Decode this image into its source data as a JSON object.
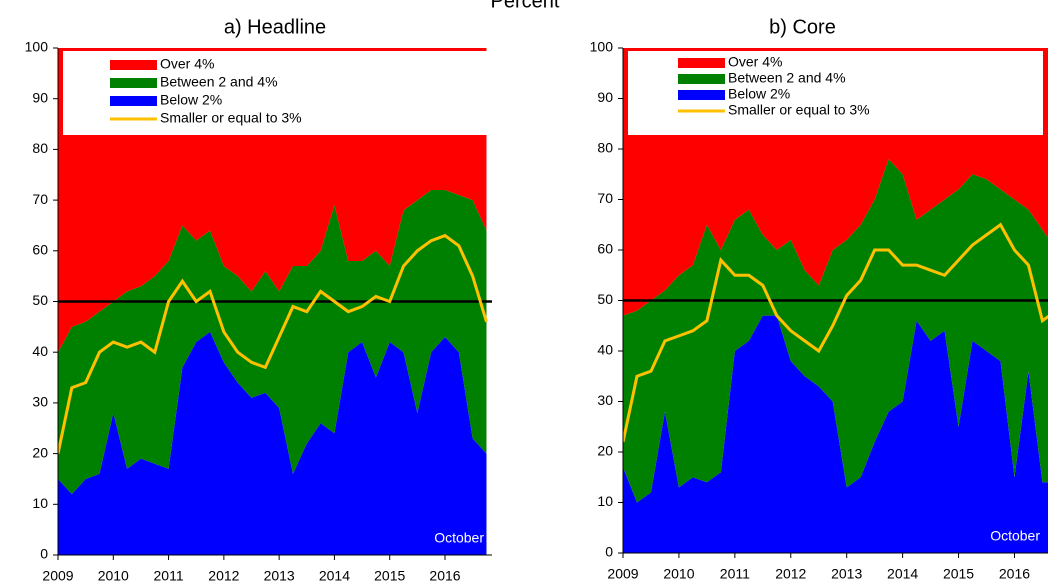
{
  "title": "Percent",
  "chart_data": [
    {
      "type": "area",
      "stacked": true,
      "title": "a) Headline",
      "annotation": "October",
      "hline": 50,
      "x": [
        2009,
        2009.25,
        2009.5,
        2009.75,
        2010,
        2010.25,
        2010.5,
        2010.75,
        2011,
        2011.25,
        2011.5,
        2011.75,
        2012,
        2012.25,
        2012.5,
        2012.75,
        2013,
        2013.25,
        2013.5,
        2013.75,
        2014,
        2014.25,
        2014.5,
        2014.75,
        2015,
        2015.25,
        2015.5,
        2015.75,
        2016,
        2016.25,
        2016.5,
        2016.75
      ],
      "xlim": [
        2009,
        2016.85
      ],
      "xticks": [
        2009,
        2010,
        2011,
        2012,
        2013,
        2014,
        2015,
        2016
      ],
      "ylim": [
        0,
        100
      ],
      "yticks": [
        0,
        10,
        20,
        30,
        40,
        50,
        60,
        70,
        80,
        90,
        100
      ],
      "series": [
        {
          "name": "Over 4%",
          "color": "#ff0000",
          "values": [
            60,
            55,
            54,
            52,
            50,
            48,
            47,
            45,
            42,
            35,
            38,
            36,
            43,
            45,
            48,
            44,
            48,
            43,
            43,
            40,
            31,
            42,
            42,
            40,
            43,
            32,
            30,
            28,
            28,
            29,
            30,
            36
          ]
        },
        {
          "name": "Between 2 and 4%",
          "color": "#008000",
          "values": [
            25,
            33,
            31,
            32,
            22,
            35,
            34,
            37,
            41,
            28,
            20,
            20,
            19,
            21,
            21,
            24,
            23,
            41,
            35,
            34,
            45,
            18,
            16,
            25,
            15,
            28,
            42,
            32,
            29,
            31,
            47,
            44
          ]
        },
        {
          "name": "Below 2%",
          "color": "#0000ff",
          "values": [
            15,
            12,
            15,
            16,
            28,
            17,
            19,
            18,
            17,
            37,
            42,
            44,
            38,
            34,
            31,
            32,
            29,
            16,
            22,
            26,
            24,
            40,
            42,
            35,
            42,
            40,
            28,
            40,
            43,
            40,
            23,
            20
          ]
        },
        {
          "name": "Smaller or equal to 3%",
          "type": "line",
          "color": "#ffc000",
          "values": [
            20,
            33,
            34,
            40,
            42,
            41,
            42,
            40,
            50,
            54,
            50,
            52,
            44,
            40,
            38,
            37,
            43,
            49,
            48,
            52,
            50,
            48,
            49,
            51,
            50,
            57,
            60,
            62,
            63,
            61,
            55,
            46
          ]
        }
      ]
    },
    {
      "type": "area",
      "stacked": true,
      "title": "b) Core",
      "annotation": "October",
      "hline": 50,
      "x": [
        2009,
        2009.25,
        2009.5,
        2009.75,
        2010,
        2010.25,
        2010.5,
        2010.75,
        2011,
        2011.25,
        2011.5,
        2011.75,
        2012,
        2012.25,
        2012.5,
        2012.75,
        2013,
        2013.25,
        2013.5,
        2013.75,
        2014,
        2014.25,
        2014.5,
        2014.75,
        2015,
        2015.25,
        2015.5,
        2015.75,
        2016,
        2016.25,
        2016.5,
        2016.75
      ],
      "xlim": [
        2009,
        2016.85
      ],
      "xticks": [
        2009,
        2010,
        2011,
        2012,
        2013,
        2014,
        2015,
        2016
      ],
      "ylim": [
        0,
        100
      ],
      "yticks": [
        0,
        10,
        20,
        30,
        40,
        50,
        60,
        70,
        80,
        90,
        100
      ],
      "series": [
        {
          "name": "Over 4%",
          "color": "#ff0000",
          "values": [
            53,
            52,
            50,
            48,
            45,
            43,
            35,
            40,
            34,
            32,
            37,
            40,
            38,
            44,
            47,
            40,
            38,
            35,
            30,
            22,
            25,
            34,
            32,
            30,
            28,
            25,
            26,
            28,
            30,
            32,
            36,
            40
          ]
        },
        {
          "name": "Between 2 and 4%",
          "color": "#008000",
          "values": [
            30,
            38,
            38,
            24,
            42,
            42,
            51,
            44,
            26,
            26,
            16,
            13,
            24,
            21,
            20,
            30,
            49,
            50,
            48,
            50,
            45,
            20,
            26,
            26,
            47,
            33,
            34,
            34,
            55,
            32,
            50,
            46
          ]
        },
        {
          "name": "Below 2%",
          "color": "#0000ff",
          "values": [
            17,
            10,
            12,
            28,
            13,
            15,
            14,
            16,
            40,
            42,
            47,
            47,
            38,
            35,
            33,
            30,
            13,
            15,
            22,
            28,
            30,
            46,
            42,
            44,
            25,
            42,
            40,
            38,
            15,
            36,
            14,
            14
          ]
        },
        {
          "name": "Smaller or equal to 3%",
          "type": "line",
          "color": "#ffc000",
          "values": [
            22,
            35,
            36,
            42,
            43,
            44,
            46,
            58,
            55,
            55,
            53,
            47,
            44,
            42,
            40,
            45,
            51,
            54,
            60,
            60,
            57,
            57,
            56,
            55,
            58,
            61,
            63,
            65,
            60,
            57,
            46,
            48
          ]
        }
      ]
    }
  ]
}
